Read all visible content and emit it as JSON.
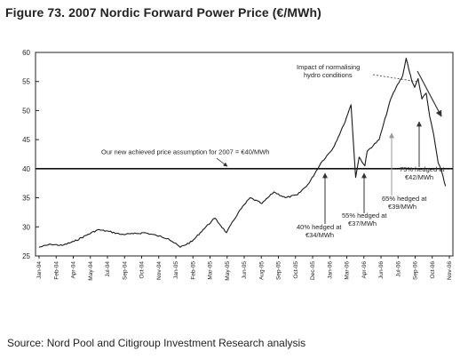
{
  "figure": {
    "title": "Figure 73. 2007 Nordic Forward Power Price (€/MWh)",
    "source": "Source: Nord Pool and Citigroup Investment Research analysis"
  },
  "chart_data": {
    "type": "line",
    "title": "Figure 73. 2007 Nordic Forward Power Price (€/MWh)",
    "xlabel": "",
    "ylabel": "",
    "ylim": [
      25,
      60
    ],
    "yticks": [
      "25",
      "30",
      "35",
      "40",
      "45",
      "50",
      "55",
      "60"
    ],
    "xticks": [
      "Jan-04",
      "Feb-04",
      "Apr-04",
      "May-04",
      "Jul-04",
      "Sep-04",
      "Oct-04",
      "Nov-04",
      "Jan-05",
      "Feb-05",
      "Mar-05",
      "May-05",
      "Jun-05",
      "Aug-05",
      "Sep-05",
      "Oct-05",
      "Dec-05",
      "Jan-06",
      "Mar-06",
      "Apr-06",
      "Jun-06",
      "Jul-06",
      "Sep-06",
      "Oct-06",
      "Nov-06"
    ],
    "grid": false,
    "legend": "none",
    "reference_line": {
      "value": 40,
      "label": "Our new achieved price assumption for 2007 = €40/MWh"
    },
    "series": [
      {
        "x": [
          "2004-01",
          "2004-02",
          "2004-03",
          "2004-04",
          "2004-05",
          "2004-06",
          "2004-07",
          "2004-08",
          "2004-09",
          "2004-10",
          "2004-11",
          "2004-12",
          "2005-01",
          "2005-02",
          "2005-03",
          "2005-04",
          "2005-05",
          "2005-06",
          "2005-07",
          "2005-08",
          "2005-09",
          "2005-10",
          "2005-11",
          "2005-12",
          "2006-01",
          "2006-02",
          "2006-03",
          "2006-03-20",
          "2006-04-01",
          "2006-04-10",
          "2006-04-25",
          "2006-05",
          "2006-06",
          "2006-07",
          "2006-07-15",
          "2006-08",
          "2006-08-10",
          "2006-08-25",
          "2006-09",
          "2006-09-10",
          "2006-09-20",
          "2006-10",
          "2006-10-10",
          "2006-10-20",
          "2006-11",
          "2006-11-10",
          "2006-11-20"
        ],
        "values": [
          26.5,
          27,
          26.8,
          27.5,
          28.5,
          29.5,
          29.2,
          28.7,
          28.8,
          29,
          28.5,
          28,
          26.5,
          27.5,
          29.5,
          31.5,
          29,
          32.5,
          35,
          34,
          36,
          35,
          35.5,
          37.5,
          41,
          43.5,
          47.5,
          51,
          38.5,
          42,
          40.5,
          43,
          45,
          52,
          54,
          56,
          59,
          55,
          54,
          55.5,
          52,
          53,
          49,
          46,
          41,
          39.5,
          37
        ]
      }
    ],
    "annotations": [
      {
        "text": "Impact of normalising hydro conditions"
      },
      {
        "text": "40% hedged at €34/MWh"
      },
      {
        "text": "55% hedged at €37/MWh"
      },
      {
        "text": "65% hedged at €39/MWh"
      },
      {
        "text": "75% hedged at €42/MWh"
      }
    ]
  },
  "colors": {
    "line": "#1a1a1a",
    "axis": "#222222",
    "arrow": "#333333",
    "arrow_light": "#9a9a9a"
  }
}
